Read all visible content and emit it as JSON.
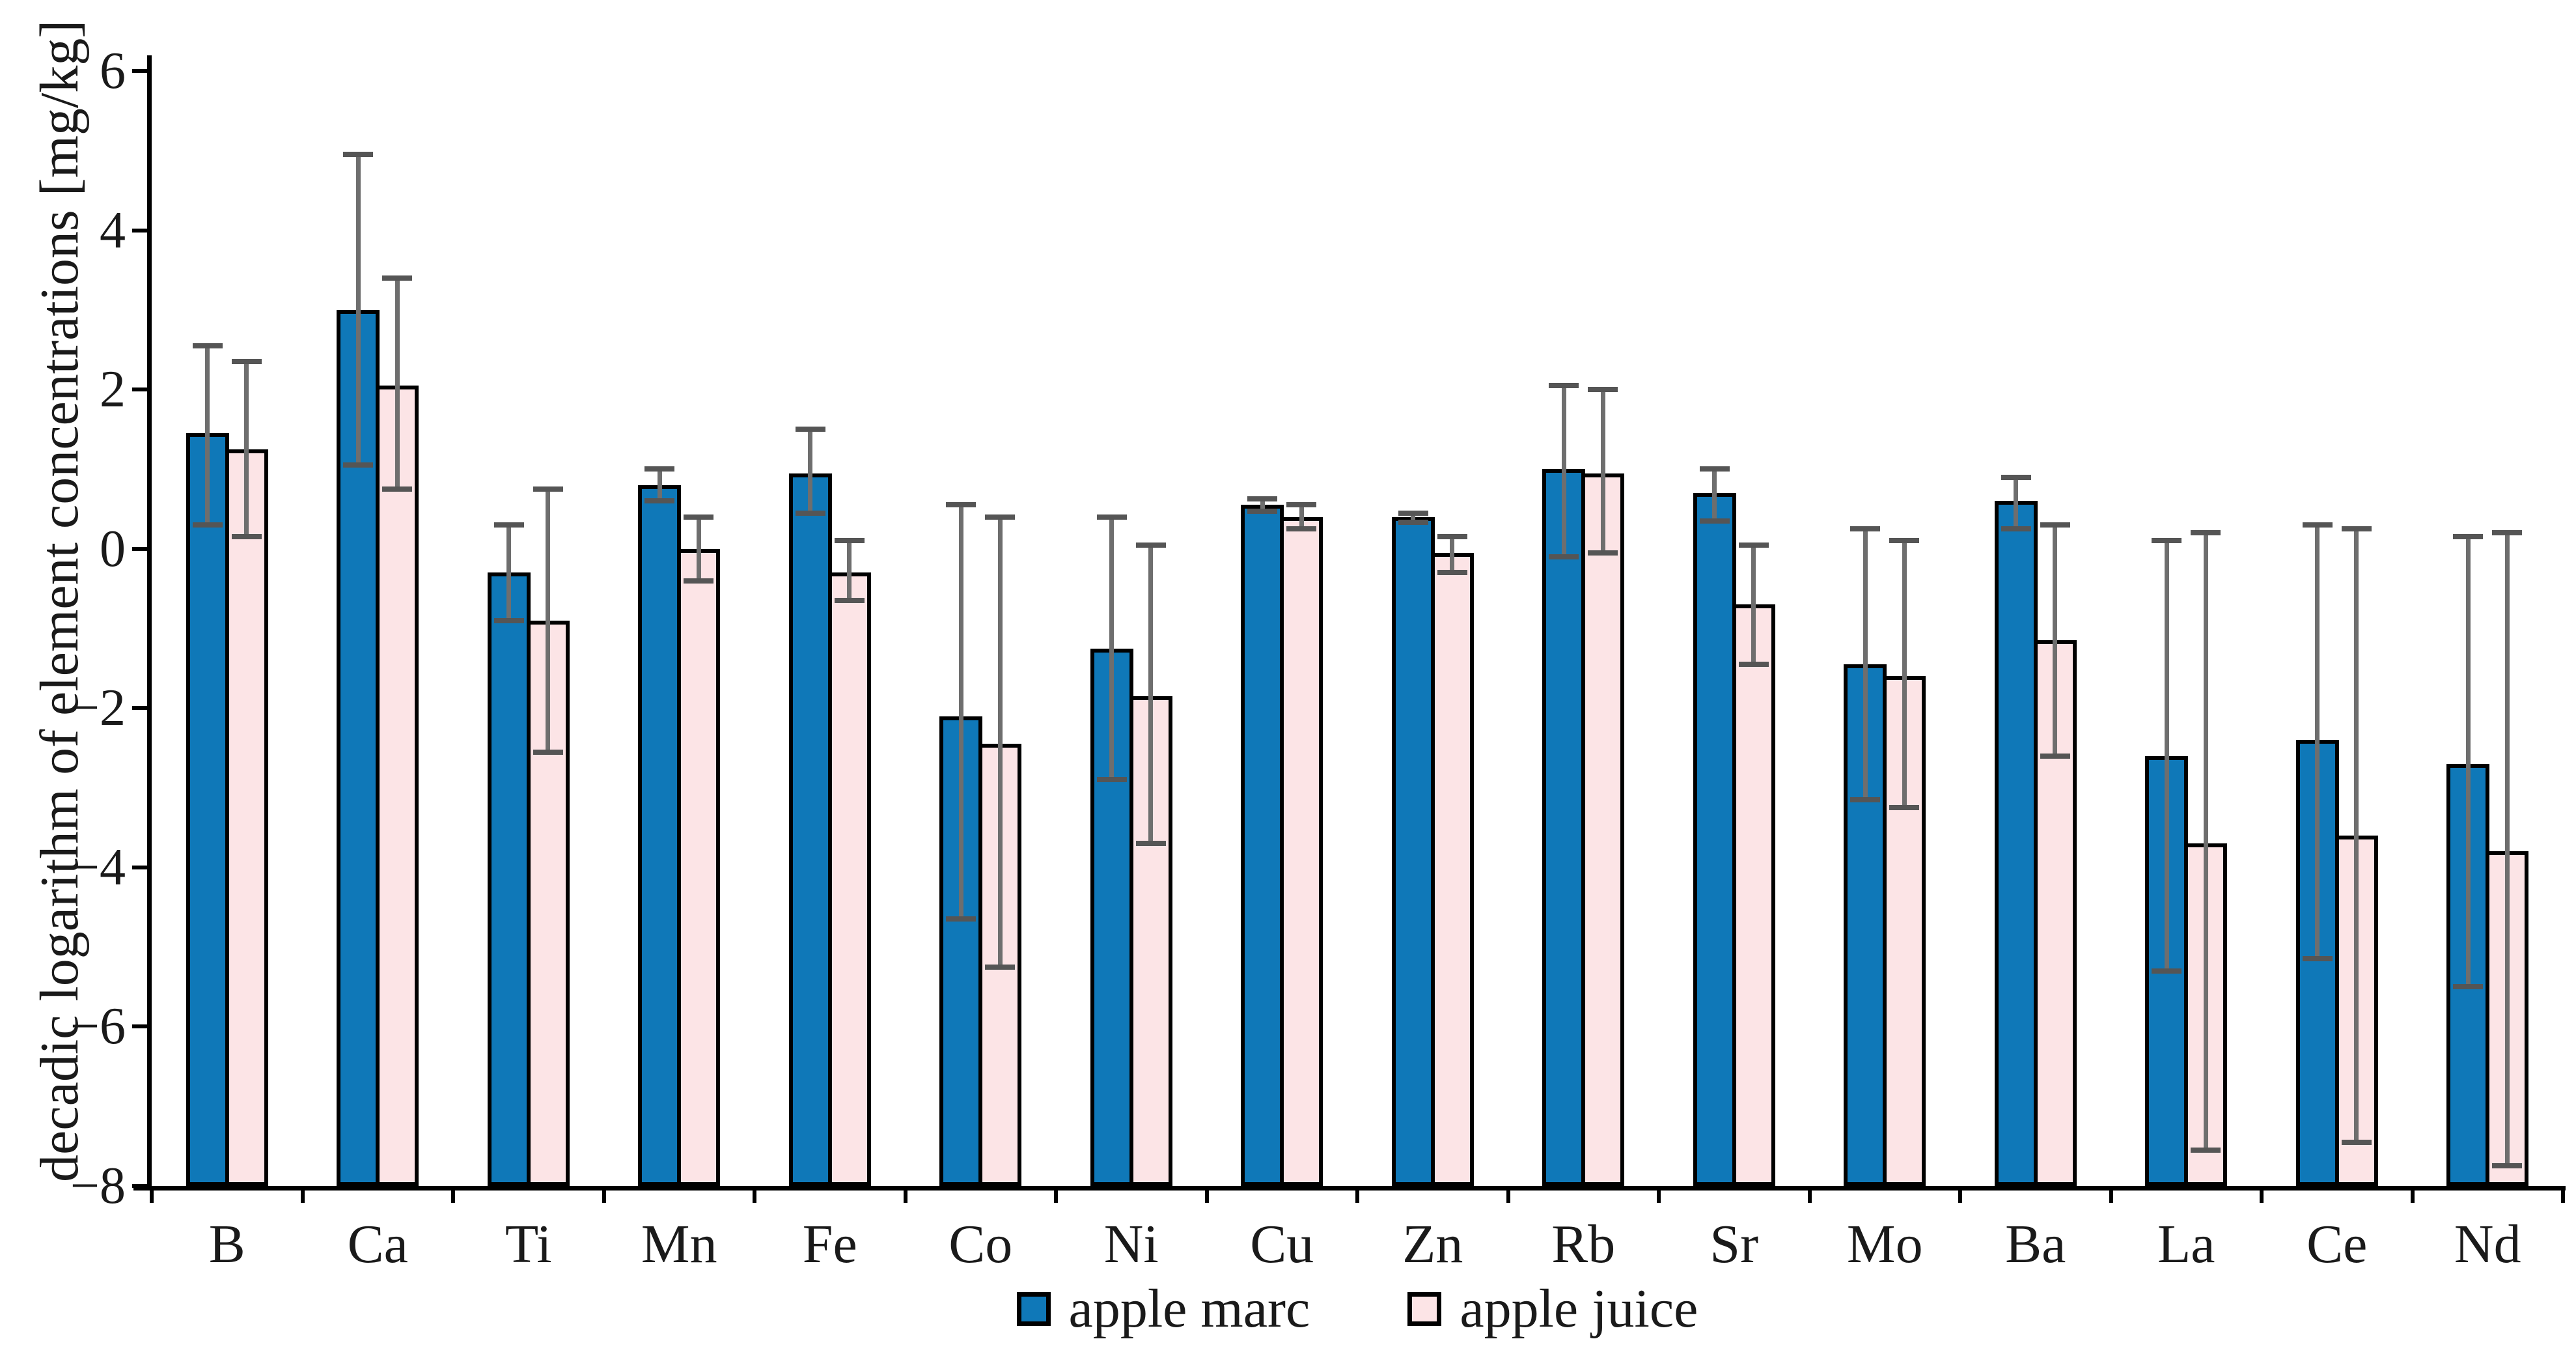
{
  "figure": {
    "background": "#ffffff",
    "axis_color": "#000000",
    "error_bar_line_color": "#6e6e6e",
    "error_bar_cap_color": "#555555"
  },
  "legend": {
    "items": [
      {
        "label": "apple marc",
        "color": "#0f78b8"
      },
      {
        "label": "apple juice",
        "color": "#fce4e6"
      }
    ]
  },
  "chart_data": {
    "type": "bar",
    "title": "",
    "xlabel": "",
    "ylabel": "decadic logarithm of element concentrations [mg/kg]",
    "ylim": [
      -8,
      6
    ],
    "yticks": [
      6,
      4,
      2,
      0,
      -2,
      -4,
      -6,
      -8
    ],
    "bar_base": -8,
    "grid": false,
    "legend_position": "bottom",
    "categories": [
      "B",
      "Ca",
      "Ti",
      "Mn",
      "Fe",
      "Co",
      "Ni",
      "Cu",
      "Zn",
      "Rb",
      "Sr",
      "Mo",
      "Ba",
      "La",
      "Ce",
      "Nd"
    ],
    "series": [
      {
        "name": "apple marc",
        "color": "#0f78b8",
        "values": [
          1.45,
          3.0,
          -0.3,
          0.8,
          0.95,
          -2.1,
          -1.25,
          0.55,
          0.4,
          1.0,
          0.7,
          -1.45,
          0.6,
          -2.6,
          -2.4,
          -2.7
        ],
        "error_top": [
          2.55,
          4.95,
          0.3,
          1.0,
          1.5,
          0.55,
          0.4,
          0.63,
          0.45,
          2.05,
          1.0,
          0.25,
          0.9,
          0.1,
          0.3,
          0.15
        ],
        "error_bottom": [
          0.3,
          1.05,
          -0.9,
          0.6,
          0.45,
          -4.65,
          -2.9,
          0.47,
          0.33,
          -0.1,
          0.35,
          -3.15,
          0.25,
          -5.3,
          -5.15,
          -5.5
        ]
      },
      {
        "name": "apple juice",
        "color": "#fce4e6",
        "values": [
          1.25,
          2.05,
          -0.9,
          0.0,
          -0.3,
          -2.45,
          -1.85,
          0.4,
          -0.05,
          0.95,
          -0.7,
          -1.6,
          -1.15,
          -3.7,
          -3.6,
          -3.8
        ],
        "error_top": [
          2.35,
          3.4,
          0.75,
          0.4,
          0.1,
          0.4,
          0.05,
          0.55,
          0.15,
          2.0,
          0.05,
          0.1,
          0.3,
          0.2,
          0.25,
          0.2
        ],
        "error_bottom": [
          0.15,
          0.75,
          -2.55,
          -0.4,
          -0.65,
          -5.25,
          -3.7,
          0.25,
          -0.3,
          -0.05,
          -1.45,
          -3.25,
          -2.6,
          -7.55,
          -7.45,
          -7.75
        ]
      }
    ]
  }
}
